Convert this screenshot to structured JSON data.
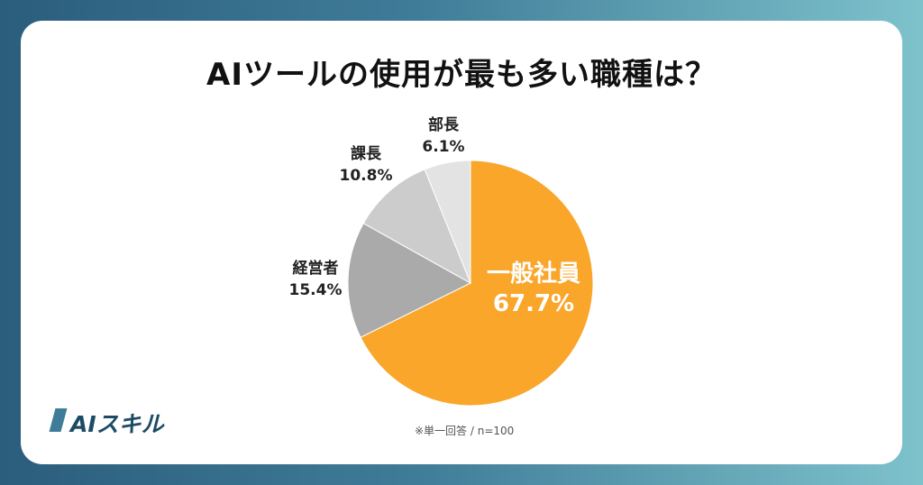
{
  "title": "AIツールの使用が最も多い職種は？",
  "note": "※単一回答 / n=100",
  "logo_text": "AIスキル",
  "colors": {
    "background_left": "#2b5d7c",
    "background_right": "#7ec2cc",
    "card": "#ffffff"
  },
  "chart_data": {
    "type": "pie",
    "slices": [
      {
        "name": "一般社員",
        "value": 67.7,
        "label": "67.7%",
        "color": "#f9a62a"
      },
      {
        "name": "経営者",
        "value": 15.4,
        "label": "15.4%",
        "color": "#aaaaaa"
      },
      {
        "name": "課長",
        "value": 10.8,
        "label": "10.8%",
        "color": "#cccccc"
      },
      {
        "name": "部長",
        "value": 6.1,
        "label": "6.1%",
        "color": "#e3e3e3"
      }
    ],
    "start": "12 o'clock",
    "direction": "clockwise"
  }
}
